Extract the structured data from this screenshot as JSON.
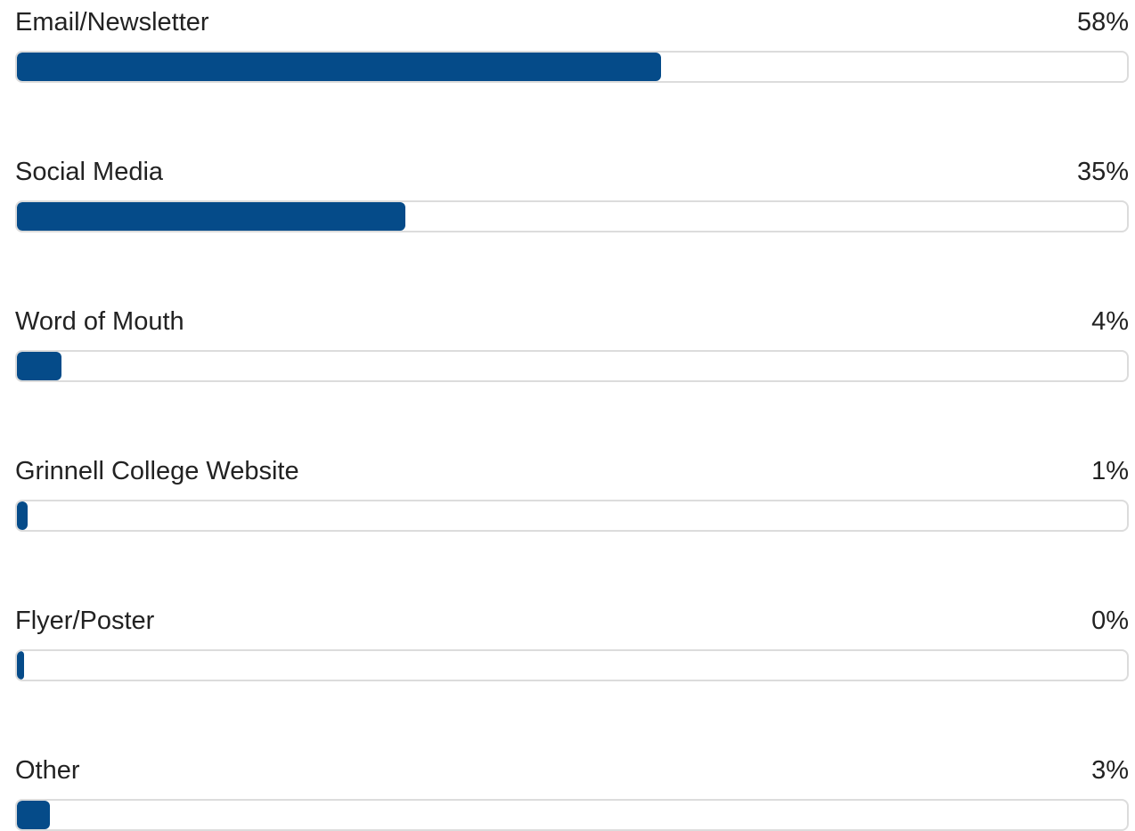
{
  "theme": {
    "bar_color": "#054b89",
    "track_border": "#dcdcdc"
  },
  "chart_data": {
    "type": "bar",
    "orientation": "horizontal",
    "categories": [
      "Email/Newsletter",
      "Social Media",
      "Word of Mouth",
      "Grinnell College Website",
      "Flyer/Poster",
      "Other"
    ],
    "values": [
      58,
      35,
      4,
      1,
      0,
      3
    ],
    "labels": [
      "58%",
      "35%",
      "4%",
      "1%",
      "0%",
      "3%"
    ],
    "xlim": [
      0,
      100
    ],
    "value_unit": "%"
  }
}
